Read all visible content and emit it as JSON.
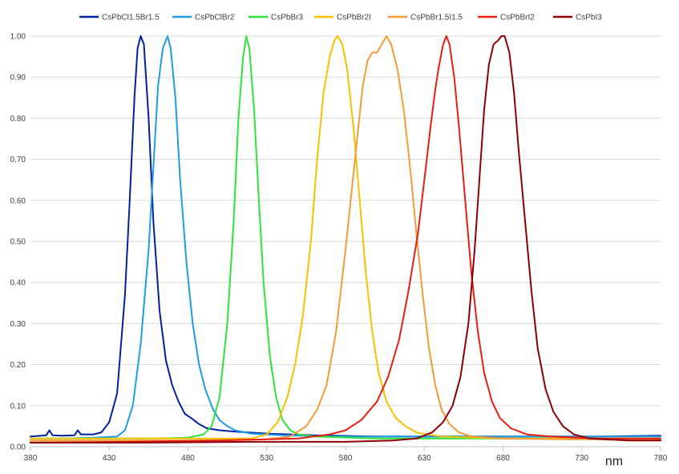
{
  "chart_data": {
    "type": "line",
    "title": "",
    "xlabel": "nm",
    "ylabel": "",
    "xlim": [
      380,
      780
    ],
    "ylim": [
      0,
      1
    ],
    "x_ticks": [
      380,
      430,
      480,
      530,
      580,
      630,
      680,
      730,
      780
    ],
    "y_ticks": [
      0,
      0.1,
      0.2,
      0.3,
      0.4,
      0.5,
      0.6,
      0.7,
      0.8,
      0.9,
      1.0
    ],
    "x_tick_labels": [
      "380",
      "430",
      "480",
      "530",
      "580",
      "630",
      "680",
      "730",
      "780"
    ],
    "y_tick_labels": [
      "0.00",
      "0.10",
      "0.20",
      "0.30",
      "0.40",
      "0.50",
      "0.60",
      "0.70",
      "0.80",
      "0.90",
      "1.00"
    ],
    "grid": "horizontal",
    "legend_position": "top",
    "series": [
      {
        "name": "CsPbCl1.5Br1.5",
        "color": "#00209f",
        "points": [
          [
            380,
            0.025
          ],
          [
            390,
            0.028
          ],
          [
            392,
            0.04
          ],
          [
            394,
            0.028
          ],
          [
            400,
            0.027
          ],
          [
            408,
            0.028
          ],
          [
            410,
            0.04
          ],
          [
            412,
            0.03
          ],
          [
            420,
            0.03
          ],
          [
            425,
            0.035
          ],
          [
            430,
            0.06
          ],
          [
            435,
            0.13
          ],
          [
            440,
            0.37
          ],
          [
            443,
            0.6
          ],
          [
            446,
            0.85
          ],
          [
            448,
            0.97
          ],
          [
            450,
            1.0
          ],
          [
            452,
            0.98
          ],
          [
            455,
            0.8
          ],
          [
            458,
            0.55
          ],
          [
            462,
            0.33
          ],
          [
            466,
            0.21
          ],
          [
            470,
            0.15
          ],
          [
            474,
            0.11
          ],
          [
            478,
            0.08
          ],
          [
            482,
            0.07
          ],
          [
            487,
            0.055
          ],
          [
            492,
            0.045
          ],
          [
            500,
            0.04
          ],
          [
            510,
            0.037
          ],
          [
            530,
            0.032
          ],
          [
            560,
            0.028
          ],
          [
            600,
            0.025
          ],
          [
            640,
            0.025
          ],
          [
            700,
            0.025
          ],
          [
            740,
            0.025
          ],
          [
            780,
            0.027
          ]
        ]
      },
      {
        "name": "CsPbClBr2",
        "color": "#1f9ce6",
        "points": [
          [
            380,
            0.02
          ],
          [
            400,
            0.02
          ],
          [
            420,
            0.022
          ],
          [
            435,
            0.025
          ],
          [
            440,
            0.04
          ],
          [
            445,
            0.1
          ],
          [
            450,
            0.25
          ],
          [
            455,
            0.48
          ],
          [
            458,
            0.68
          ],
          [
            461,
            0.88
          ],
          [
            464,
            0.97
          ],
          [
            467,
            1.0
          ],
          [
            469,
            0.97
          ],
          [
            472,
            0.85
          ],
          [
            475,
            0.65
          ],
          [
            479,
            0.45
          ],
          [
            483,
            0.3
          ],
          [
            487,
            0.2
          ],
          [
            491,
            0.14
          ],
          [
            496,
            0.09
          ],
          [
            500,
            0.065
          ],
          [
            505,
            0.05
          ],
          [
            510,
            0.04
          ],
          [
            520,
            0.032
          ],
          [
            540,
            0.028
          ],
          [
            570,
            0.025
          ],
          [
            620,
            0.025
          ],
          [
            700,
            0.025
          ],
          [
            780,
            0.025
          ]
        ]
      },
      {
        "name": "CsPbBr3",
        "color": "#2ee33a",
        "points": [
          [
            380,
            0.02
          ],
          [
            420,
            0.02
          ],
          [
            460,
            0.02
          ],
          [
            480,
            0.022
          ],
          [
            490,
            0.03
          ],
          [
            495,
            0.05
          ],
          [
            500,
            0.12
          ],
          [
            505,
            0.3
          ],
          [
            509,
            0.55
          ],
          [
            512,
            0.8
          ],
          [
            515,
            0.95
          ],
          [
            517,
            1.0
          ],
          [
            519,
            0.97
          ],
          [
            522,
            0.82
          ],
          [
            525,
            0.6
          ],
          [
            528,
            0.4
          ],
          [
            532,
            0.22
          ],
          [
            536,
            0.12
          ],
          [
            540,
            0.065
          ],
          [
            545,
            0.04
          ],
          [
            550,
            0.03
          ],
          [
            560,
            0.025
          ],
          [
            600,
            0.02
          ],
          [
            650,
            0.02
          ],
          [
            700,
            0.02
          ],
          [
            780,
            0.02
          ]
        ]
      },
      {
        "name": "CsPbBr2I",
        "color": "#f5c200",
        "points": [
          [
            380,
            0.02
          ],
          [
            450,
            0.02
          ],
          [
            520,
            0.02
          ],
          [
            530,
            0.03
          ],
          [
            537,
            0.06
          ],
          [
            543,
            0.12
          ],
          [
            548,
            0.2
          ],
          [
            553,
            0.32
          ],
          [
            558,
            0.5
          ],
          [
            562,
            0.7
          ],
          [
            566,
            0.86
          ],
          [
            570,
            0.95
          ],
          [
            573,
            0.99
          ],
          [
            575,
            1.0
          ],
          [
            578,
            0.98
          ],
          [
            581,
            0.92
          ],
          [
            585,
            0.78
          ],
          [
            589,
            0.6
          ],
          [
            593,
            0.42
          ],
          [
            597,
            0.28
          ],
          [
            601,
            0.18
          ],
          [
            606,
            0.11
          ],
          [
            612,
            0.07
          ],
          [
            618,
            0.05
          ],
          [
            625,
            0.035
          ],
          [
            640,
            0.025
          ],
          [
            680,
            0.02
          ],
          [
            780,
            0.02
          ]
        ]
      },
      {
        "name": "CsPbBr1.5I1.5",
        "color": "#f59a38",
        "points": [
          [
            380,
            0.015
          ],
          [
            480,
            0.015
          ],
          [
            530,
            0.018
          ],
          [
            545,
            0.025
          ],
          [
            555,
            0.05
          ],
          [
            562,
            0.09
          ],
          [
            568,
            0.15
          ],
          [
            574,
            0.28
          ],
          [
            580,
            0.48
          ],
          [
            586,
            0.7
          ],
          [
            591,
            0.88
          ],
          [
            594,
            0.94
          ],
          [
            597,
            0.96
          ],
          [
            600,
            0.96
          ],
          [
            603,
            0.98
          ],
          [
            606,
            1.0
          ],
          [
            609,
            0.98
          ],
          [
            613,
            0.92
          ],
          [
            617,
            0.82
          ],
          [
            621,
            0.68
          ],
          [
            625,
            0.52
          ],
          [
            629,
            0.37
          ],
          [
            633,
            0.24
          ],
          [
            637,
            0.15
          ],
          [
            641,
            0.09
          ],
          [
            646,
            0.055
          ],
          [
            652,
            0.035
          ],
          [
            660,
            0.025
          ],
          [
            680,
            0.02
          ],
          [
            720,
            0.018
          ],
          [
            780,
            0.018
          ]
        ]
      },
      {
        "name": "CsPbBrI2",
        "color": "#e81e10",
        "points": [
          [
            380,
            0.01
          ],
          [
            440,
            0.012
          ],
          [
            500,
            0.015
          ],
          [
            550,
            0.02
          ],
          [
            570,
            0.03
          ],
          [
            580,
            0.04
          ],
          [
            590,
            0.065
          ],
          [
            600,
            0.11
          ],
          [
            607,
            0.17
          ],
          [
            614,
            0.26
          ],
          [
            620,
            0.38
          ],
          [
            626,
            0.52
          ],
          [
            631,
            0.68
          ],
          [
            634,
            0.78
          ],
          [
            637,
            0.87
          ],
          [
            639,
            0.92
          ],
          [
            642,
            0.98
          ],
          [
            644,
            1.0
          ],
          [
            646,
            0.98
          ],
          [
            649,
            0.9
          ],
          [
            652,
            0.78
          ],
          [
            656,
            0.6
          ],
          [
            660,
            0.42
          ],
          [
            664,
            0.28
          ],
          [
            668,
            0.18
          ],
          [
            673,
            0.11
          ],
          [
            678,
            0.07
          ],
          [
            685,
            0.045
          ],
          [
            695,
            0.03
          ],
          [
            710,
            0.025
          ],
          [
            740,
            0.02
          ],
          [
            780,
            0.02
          ]
        ]
      },
      {
        "name": "CsPbI3",
        "color": "#8b0000",
        "points": [
          [
            380,
            0.01
          ],
          [
            450,
            0.01
          ],
          [
            520,
            0.012
          ],
          [
            580,
            0.012
          ],
          [
            610,
            0.015
          ],
          [
            625,
            0.02
          ],
          [
            635,
            0.035
          ],
          [
            642,
            0.06
          ],
          [
            648,
            0.1
          ],
          [
            653,
            0.17
          ],
          [
            658,
            0.3
          ],
          [
            662,
            0.48
          ],
          [
            665,
            0.65
          ],
          [
            668,
            0.82
          ],
          [
            671,
            0.93
          ],
          [
            674,
            0.98
          ],
          [
            677,
            0.99
          ],
          [
            679,
            1.0
          ],
          [
            681,
            1.0
          ],
          [
            684,
            0.96
          ],
          [
            687,
            0.86
          ],
          [
            690,
            0.72
          ],
          [
            694,
            0.55
          ],
          [
            698,
            0.38
          ],
          [
            702,
            0.24
          ],
          [
            707,
            0.14
          ],
          [
            712,
            0.085
          ],
          [
            718,
            0.05
          ],
          [
            725,
            0.03
          ],
          [
            735,
            0.02
          ],
          [
            760,
            0.015
          ],
          [
            780,
            0.015
          ]
        ]
      }
    ]
  }
}
